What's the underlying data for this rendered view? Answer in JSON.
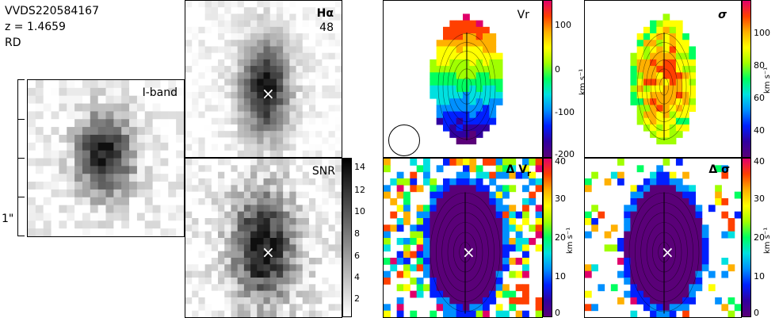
{
  "header": {
    "object_id": "VVDS220584167",
    "redshift": "z = 1.4659",
    "classification": "RD"
  },
  "scale_label": "1\"",
  "panels": {
    "iband": {
      "label": "I-band"
    },
    "halpha": {
      "label": "Hα",
      "value": "48"
    },
    "snr": {
      "label": "SNR",
      "ticks": [
        "14",
        "12",
        "10",
        "8",
        "6",
        "4",
        "2"
      ]
    },
    "vr": {
      "label": "Vr",
      "sub": "r",
      "unit": "km s⁻¹",
      "ticks": [
        "100",
        "0",
        "-100",
        "-200"
      ]
    },
    "sigma": {
      "label": "σ",
      "unit": "km s⁻¹",
      "ticks": [
        "100",
        "80",
        "60",
        "40"
      ]
    },
    "dvr": {
      "label": "Δ V",
      "sub": "r",
      "unit": "km s⁻¹",
      "ticks": [
        "40",
        "30",
        "20",
        "10",
        "0"
      ]
    },
    "dsigma": {
      "label": "Δ σ",
      "unit": "km s⁻¹",
      "ticks": [
        "40",
        "30",
        "20",
        "10",
        "0"
      ]
    }
  },
  "marker_symbol": "×",
  "colors": {
    "rainbow": [
      "#5a0078",
      "#3000a0",
      "#0020ff",
      "#0090ff",
      "#00e0e0",
      "#00ff60",
      "#a0ff00",
      "#ffff00",
      "#ffb000",
      "#ff4000",
      "#e0006a"
    ]
  }
}
